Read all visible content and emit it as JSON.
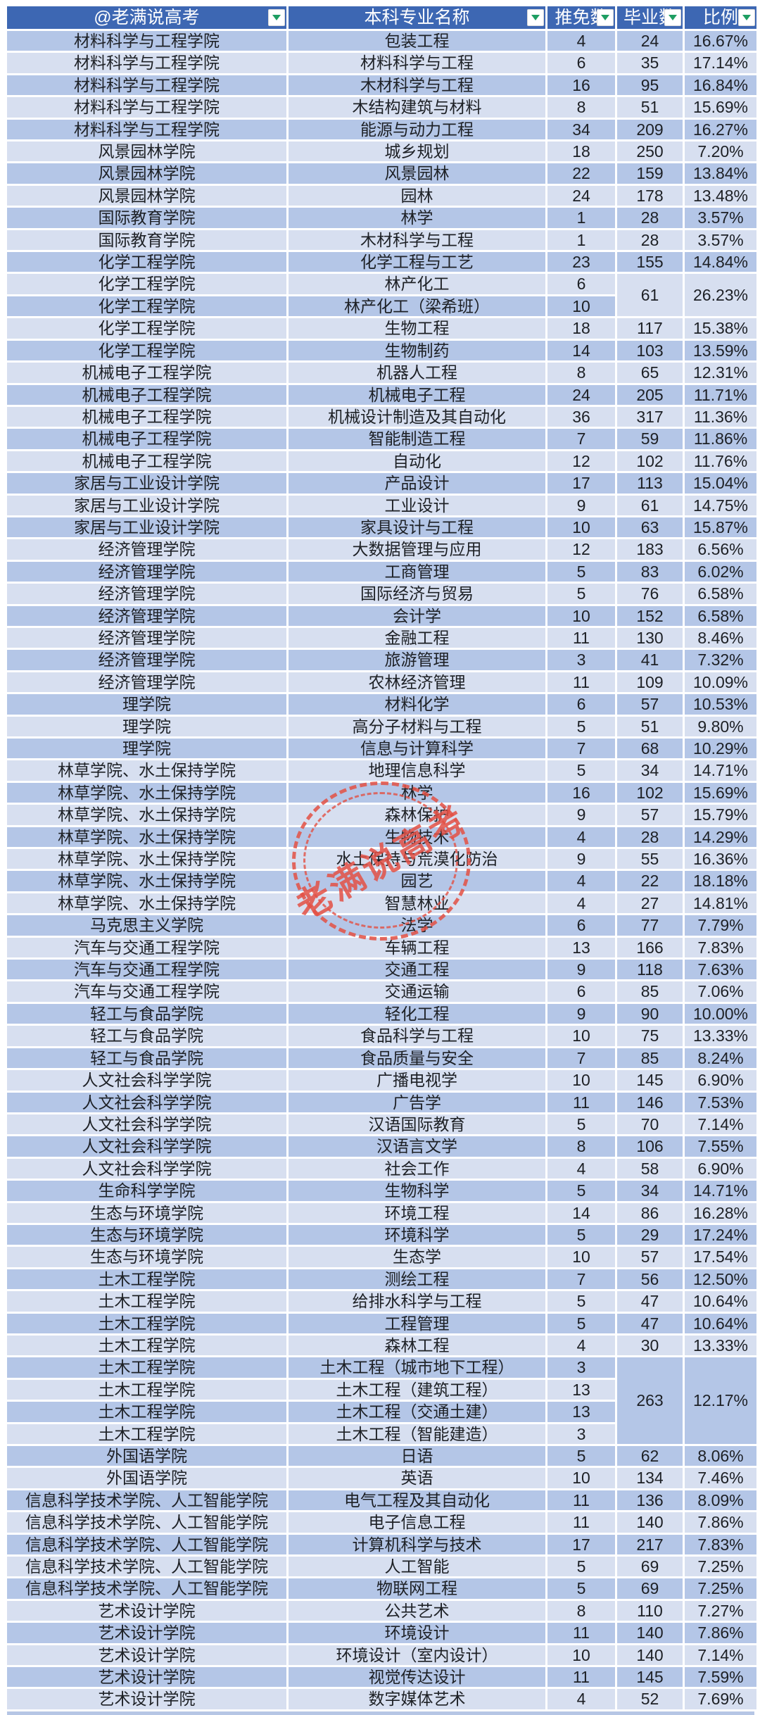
{
  "header": {
    "college": "@老满说高考",
    "major": "本科专业名称",
    "tuimian": "推免数",
    "biye": "毕业数",
    "ratio": "比例"
  },
  "watermark": {
    "text": "老满说高考",
    "color": "#E35044"
  },
  "colors": {
    "header_bg": "#3D67B3",
    "header_text": "#FFFFFF",
    "row_dark": "#B4C6E7",
    "row_light": "#D7DFF0",
    "gridline": "#FFFFFF",
    "filter_arrow_green": "#1E9E62",
    "body_text": "#1D2025"
  },
  "rows": [
    {
      "college": "材料科学与工程学院",
      "major": "包装工程",
      "tuimian": "4",
      "biye": "24",
      "ratio": "16.67%"
    },
    {
      "college": "材料科学与工程学院",
      "major": "材料科学与工程",
      "tuimian": "6",
      "biye": "35",
      "ratio": "17.14%"
    },
    {
      "college": "材料科学与工程学院",
      "major": "木材科学与工程",
      "tuimian": "16",
      "biye": "95",
      "ratio": "16.84%"
    },
    {
      "college": "材料科学与工程学院",
      "major": "木结构建筑与材料",
      "tuimian": "8",
      "biye": "51",
      "ratio": "15.69%"
    },
    {
      "college": "材料科学与工程学院",
      "major": "能源与动力工程",
      "tuimian": "34",
      "biye": "209",
      "ratio": "16.27%"
    },
    {
      "college": "风景园林学院",
      "major": "城乡规划",
      "tuimian": "18",
      "biye": "250",
      "ratio": "7.20%"
    },
    {
      "college": "风景园林学院",
      "major": "风景园林",
      "tuimian": "22",
      "biye": "159",
      "ratio": "13.84%"
    },
    {
      "college": "风景园林学院",
      "major": "园林",
      "tuimian": "24",
      "biye": "178",
      "ratio": "13.48%"
    },
    {
      "college": "国际教育学院",
      "major": "林学",
      "tuimian": "1",
      "biye": "28",
      "ratio": "3.57%"
    },
    {
      "college": "国际教育学院",
      "major": "木材科学与工程",
      "tuimian": "1",
      "biye": "28",
      "ratio": "3.57%"
    },
    {
      "college": "化学工程学院",
      "major": "化学工程与工艺",
      "tuimian": "23",
      "biye": "155",
      "ratio": "14.84%"
    },
    {
      "college": "化学工程学院",
      "major": "林产化工",
      "tuimian": "6",
      "biye": {
        "value": "61",
        "span": 2,
        "shade": "light"
      },
      "ratio": {
        "value": "26.23%",
        "span": 2,
        "shade": "light"
      }
    },
    {
      "college": "化学工程学院",
      "major": "林产化工（梁希班）",
      "tuimian": "10",
      "biye": null,
      "ratio": null
    },
    {
      "college": "化学工程学院",
      "major": "生物工程",
      "tuimian": "18",
      "biye": "117",
      "ratio": "15.38%"
    },
    {
      "college": "化学工程学院",
      "major": "生物制药",
      "tuimian": "14",
      "biye": "103",
      "ratio": "13.59%"
    },
    {
      "college": "机械电子工程学院",
      "major": "机器人工程",
      "tuimian": "8",
      "biye": "65",
      "ratio": "12.31%"
    },
    {
      "college": "机械电子工程学院",
      "major": "机械电子工程",
      "tuimian": "24",
      "biye": "205",
      "ratio": "11.71%"
    },
    {
      "college": "机械电子工程学院",
      "major": "机械设计制造及其自动化",
      "tuimian": "36",
      "biye": "317",
      "ratio": "11.36%"
    },
    {
      "college": "机械电子工程学院",
      "major": "智能制造工程",
      "tuimian": "7",
      "biye": "59",
      "ratio": "11.86%"
    },
    {
      "college": "机械电子工程学院",
      "major": "自动化",
      "tuimian": "12",
      "biye": "102",
      "ratio": "11.76%"
    },
    {
      "college": "家居与工业设计学院",
      "major": "产品设计",
      "tuimian": "17",
      "biye": "113",
      "ratio": "15.04%"
    },
    {
      "college": "家居与工业设计学院",
      "major": "工业设计",
      "tuimian": "9",
      "biye": "61",
      "ratio": "14.75%"
    },
    {
      "college": "家居与工业设计学院",
      "major": "家具设计与工程",
      "tuimian": "10",
      "biye": "63",
      "ratio": "15.87%"
    },
    {
      "college": "经济管理学院",
      "major": "大数据管理与应用",
      "tuimian": "12",
      "biye": "183",
      "ratio": "6.56%"
    },
    {
      "college": "经济管理学院",
      "major": "工商管理",
      "tuimian": "5",
      "biye": "83",
      "ratio": "6.02%"
    },
    {
      "college": "经济管理学院",
      "major": "国际经济与贸易",
      "tuimian": "5",
      "biye": "76",
      "ratio": "6.58%"
    },
    {
      "college": "经济管理学院",
      "major": "会计学",
      "tuimian": "10",
      "biye": "152",
      "ratio": "6.58%"
    },
    {
      "college": "经济管理学院",
      "major": "金融工程",
      "tuimian": "11",
      "biye": "130",
      "ratio": "8.46%"
    },
    {
      "college": "经济管理学院",
      "major": "旅游管理",
      "tuimian": "3",
      "biye": "41",
      "ratio": "7.32%"
    },
    {
      "college": "经济管理学院",
      "major": "农林经济管理",
      "tuimian": "11",
      "biye": "109",
      "ratio": "10.09%"
    },
    {
      "college": "理学院",
      "major": "材料化学",
      "tuimian": "6",
      "biye": "57",
      "ratio": "10.53%"
    },
    {
      "college": "理学院",
      "major": "高分子材料与工程",
      "tuimian": "5",
      "biye": "51",
      "ratio": "9.80%"
    },
    {
      "college": "理学院",
      "major": "信息与计算科学",
      "tuimian": "7",
      "biye": "68",
      "ratio": "10.29%"
    },
    {
      "college": "林草学院、水土保持学院",
      "major": "地理信息科学",
      "tuimian": "5",
      "biye": "34",
      "ratio": "14.71%"
    },
    {
      "college": "林草学院、水土保持学院",
      "major": "林学",
      "tuimian": "16",
      "biye": "102",
      "ratio": "15.69%"
    },
    {
      "college": "林草学院、水土保持学院",
      "major": "森林保护",
      "tuimian": "9",
      "biye": "57",
      "ratio": "15.79%"
    },
    {
      "college": "林草学院、水土保持学院",
      "major": "生物技术",
      "tuimian": "4",
      "biye": "28",
      "ratio": "14.29%"
    },
    {
      "college": "林草学院、水土保持学院",
      "major": "水土保持与荒漠化防治",
      "tuimian": "9",
      "biye": "55",
      "ratio": "16.36%"
    },
    {
      "college": "林草学院、水土保持学院",
      "major": "园艺",
      "tuimian": "4",
      "biye": "22",
      "ratio": "18.18%"
    },
    {
      "college": "林草学院、水土保持学院",
      "major": "智慧林业",
      "tuimian": "4",
      "biye": "27",
      "ratio": "14.81%"
    },
    {
      "college": "马克思主义学院",
      "major": "法学",
      "tuimian": "6",
      "biye": "77",
      "ratio": "7.79%"
    },
    {
      "college": "汽车与交通工程学院",
      "major": "车辆工程",
      "tuimian": "13",
      "biye": "166",
      "ratio": "7.83%"
    },
    {
      "college": "汽车与交通工程学院",
      "major": "交通工程",
      "tuimian": "9",
      "biye": "118",
      "ratio": "7.63%"
    },
    {
      "college": "汽车与交通工程学院",
      "major": "交通运输",
      "tuimian": "6",
      "biye": "85",
      "ratio": "7.06%"
    },
    {
      "college": "轻工与食品学院",
      "major": "轻化工程",
      "tuimian": "9",
      "biye": "90",
      "ratio": "10.00%"
    },
    {
      "college": "轻工与食品学院",
      "major": "食品科学与工程",
      "tuimian": "10",
      "biye": "75",
      "ratio": "13.33%"
    },
    {
      "college": "轻工与食品学院",
      "major": "食品质量与安全",
      "tuimian": "7",
      "biye": "85",
      "ratio": "8.24%"
    },
    {
      "college": "人文社会科学学院",
      "major": "广播电视学",
      "tuimian": "10",
      "biye": "145",
      "ratio": "6.90%"
    },
    {
      "college": "人文社会科学学院",
      "major": "广告学",
      "tuimian": "11",
      "biye": "146",
      "ratio": "7.53%"
    },
    {
      "college": "人文社会科学学院",
      "major": "汉语国际教育",
      "tuimian": "5",
      "biye": "70",
      "ratio": "7.14%"
    },
    {
      "college": "人文社会科学学院",
      "major": "汉语言文学",
      "tuimian": "8",
      "biye": "106",
      "ratio": "7.55%"
    },
    {
      "college": "人文社会科学学院",
      "major": "社会工作",
      "tuimian": "4",
      "biye": "58",
      "ratio": "6.90%"
    },
    {
      "college": "生命科学学院",
      "major": "生物科学",
      "tuimian": "5",
      "biye": "34",
      "ratio": "14.71%"
    },
    {
      "college": "生态与环境学院",
      "major": "环境工程",
      "tuimian": "14",
      "biye": "86",
      "ratio": "16.28%"
    },
    {
      "college": "生态与环境学院",
      "major": "环境科学",
      "tuimian": "5",
      "biye": "29",
      "ratio": "17.24%"
    },
    {
      "college": "生态与环境学院",
      "major": "生态学",
      "tuimian": "10",
      "biye": "57",
      "ratio": "17.54%"
    },
    {
      "college": "土木工程学院",
      "major": "测绘工程",
      "tuimian": "7",
      "biye": "56",
      "ratio": "12.50%"
    },
    {
      "college": "土木工程学院",
      "major": "给排水科学与工程",
      "tuimian": "5",
      "biye": "47",
      "ratio": "10.64%"
    },
    {
      "college": "土木工程学院",
      "major": "工程管理",
      "tuimian": "5",
      "biye": "47",
      "ratio": "10.64%"
    },
    {
      "college": "土木工程学院",
      "major": "森林工程",
      "tuimian": "4",
      "biye": "30",
      "ratio": "13.33%"
    },
    {
      "college": "土木工程学院",
      "major": "土木工程（城市地下工程）",
      "tuimian": "3",
      "biye": {
        "value": "263",
        "span": 4,
        "shade": "dark"
      },
      "ratio": {
        "value": "12.17%",
        "span": 4,
        "shade": "dark"
      }
    },
    {
      "college": "土木工程学院",
      "major": "土木工程（建筑工程）",
      "tuimian": "13",
      "biye": null,
      "ratio": null
    },
    {
      "college": "土木工程学院",
      "major": "土木工程（交通土建）",
      "tuimian": "13",
      "biye": null,
      "ratio": null
    },
    {
      "college": "土木工程学院",
      "major": "土木工程（智能建造）",
      "tuimian": "3",
      "biye": null,
      "ratio": null
    },
    {
      "college": "外国语学院",
      "major": "日语",
      "tuimian": "5",
      "biye": "62",
      "ratio": "8.06%"
    },
    {
      "college": "外国语学院",
      "major": "英语",
      "tuimian": "10",
      "biye": "134",
      "ratio": "7.46%"
    },
    {
      "college": "信息科学技术学院、人工智能学院",
      "major": "电气工程及其自动化",
      "tuimian": "11",
      "biye": "136",
      "ratio": "8.09%"
    },
    {
      "college": "信息科学技术学院、人工智能学院",
      "major": "电子信息工程",
      "tuimian": "11",
      "biye": "140",
      "ratio": "7.86%"
    },
    {
      "college": "信息科学技术学院、人工智能学院",
      "major": "计算机科学与技术",
      "tuimian": "17",
      "biye": "217",
      "ratio": "7.83%"
    },
    {
      "college": "信息科学技术学院、人工智能学院",
      "major": "人工智能",
      "tuimian": "5",
      "biye": "69",
      "ratio": "7.25%"
    },
    {
      "college": "信息科学技术学院、人工智能学院",
      "major": "物联网工程",
      "tuimian": "5",
      "biye": "69",
      "ratio": "7.25%"
    },
    {
      "college": "艺术设计学院",
      "major": "公共艺术",
      "tuimian": "8",
      "biye": "110",
      "ratio": "7.27%"
    },
    {
      "college": "艺术设计学院",
      "major": "环境设计",
      "tuimian": "11",
      "biye": "140",
      "ratio": "7.86%"
    },
    {
      "college": "艺术设计学院",
      "major": "环境设计（室内设计）",
      "tuimian": "10",
      "biye": "140",
      "ratio": "7.14%"
    },
    {
      "college": "艺术设计学院",
      "major": "视觉传达设计",
      "tuimian": "11",
      "biye": "145",
      "ratio": "7.59%"
    },
    {
      "college": "艺术设计学院",
      "major": "数字媒体艺术",
      "tuimian": "4",
      "biye": "52",
      "ratio": "7.69%"
    }
  ]
}
